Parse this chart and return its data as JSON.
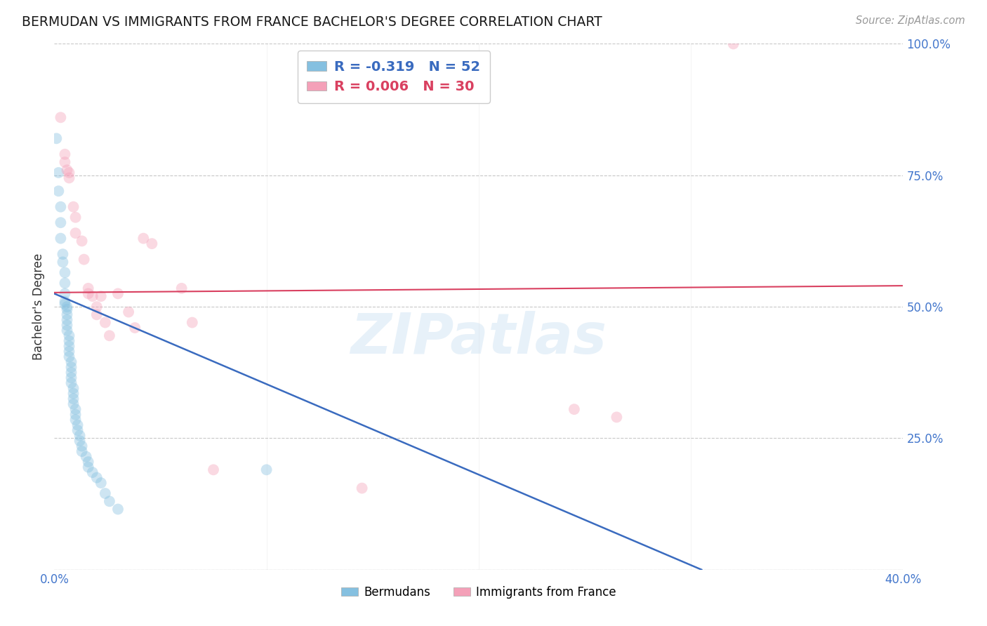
{
  "title": "BERMUDAN VS IMMIGRANTS FROM FRANCE BACHELOR'S DEGREE CORRELATION CHART",
  "source": "Source: ZipAtlas.com",
  "ylabel": "Bachelor's Degree",
  "watermark": "ZIPatlas",
  "xlim": [
    0.0,
    0.4
  ],
  "ylim": [
    0.0,
    1.0
  ],
  "xticks": [
    0.0,
    0.1,
    0.2,
    0.3,
    0.4
  ],
  "xtick_labels": [
    "0.0%",
    "",
    "",
    "",
    "40.0%"
  ],
  "ytick_labels_right": [
    "",
    "25.0%",
    "50.0%",
    "75.0%",
    "100.0%"
  ],
  "yticks": [
    0.0,
    0.25,
    0.5,
    0.75,
    1.0
  ],
  "legend_label1": "Bermudans",
  "legend_label2": "Immigrants from France",
  "blue_scatter": [
    [
      0.001,
      0.82
    ],
    [
      0.002,
      0.755
    ],
    [
      0.002,
      0.72
    ],
    [
      0.003,
      0.69
    ],
    [
      0.003,
      0.66
    ],
    [
      0.003,
      0.63
    ],
    [
      0.004,
      0.6
    ],
    [
      0.004,
      0.585
    ],
    [
      0.005,
      0.565
    ],
    [
      0.005,
      0.545
    ],
    [
      0.005,
      0.525
    ],
    [
      0.005,
      0.51
    ],
    [
      0.005,
      0.505
    ],
    [
      0.006,
      0.5
    ],
    [
      0.006,
      0.495
    ],
    [
      0.006,
      0.485
    ],
    [
      0.006,
      0.475
    ],
    [
      0.006,
      0.465
    ],
    [
      0.006,
      0.455
    ],
    [
      0.007,
      0.445
    ],
    [
      0.007,
      0.435
    ],
    [
      0.007,
      0.425
    ],
    [
      0.007,
      0.415
    ],
    [
      0.007,
      0.405
    ],
    [
      0.008,
      0.395
    ],
    [
      0.008,
      0.385
    ],
    [
      0.008,
      0.375
    ],
    [
      0.008,
      0.365
    ],
    [
      0.008,
      0.355
    ],
    [
      0.009,
      0.345
    ],
    [
      0.009,
      0.335
    ],
    [
      0.009,
      0.325
    ],
    [
      0.009,
      0.315
    ],
    [
      0.01,
      0.305
    ],
    [
      0.01,
      0.295
    ],
    [
      0.01,
      0.285
    ],
    [
      0.011,
      0.275
    ],
    [
      0.011,
      0.265
    ],
    [
      0.012,
      0.255
    ],
    [
      0.012,
      0.245
    ],
    [
      0.013,
      0.235
    ],
    [
      0.013,
      0.225
    ],
    [
      0.015,
      0.215
    ],
    [
      0.016,
      0.205
    ],
    [
      0.016,
      0.195
    ],
    [
      0.018,
      0.185
    ],
    [
      0.02,
      0.175
    ],
    [
      0.022,
      0.165
    ],
    [
      0.024,
      0.145
    ],
    [
      0.026,
      0.13
    ],
    [
      0.03,
      0.115
    ],
    [
      0.1,
      0.19
    ]
  ],
  "pink_scatter": [
    [
      0.003,
      0.86
    ],
    [
      0.005,
      0.79
    ],
    [
      0.005,
      0.775
    ],
    [
      0.006,
      0.76
    ],
    [
      0.007,
      0.755
    ],
    [
      0.007,
      0.745
    ],
    [
      0.009,
      0.69
    ],
    [
      0.01,
      0.67
    ],
    [
      0.01,
      0.64
    ],
    [
      0.013,
      0.625
    ],
    [
      0.014,
      0.59
    ],
    [
      0.016,
      0.535
    ],
    [
      0.016,
      0.525
    ],
    [
      0.018,
      0.52
    ],
    [
      0.02,
      0.5
    ],
    [
      0.02,
      0.485
    ],
    [
      0.022,
      0.52
    ],
    [
      0.024,
      0.47
    ],
    [
      0.026,
      0.445
    ],
    [
      0.03,
      0.525
    ],
    [
      0.035,
      0.49
    ],
    [
      0.038,
      0.46
    ],
    [
      0.042,
      0.63
    ],
    [
      0.046,
      0.62
    ],
    [
      0.06,
      0.535
    ],
    [
      0.065,
      0.47
    ],
    [
      0.075,
      0.19
    ],
    [
      0.145,
      0.155
    ],
    [
      0.245,
      0.305
    ],
    [
      0.265,
      0.29
    ],
    [
      0.32,
      1.0
    ]
  ],
  "blue_line_x": [
    0.0,
    0.305
  ],
  "blue_line_y": [
    0.525,
    0.0
  ],
  "pink_line_x": [
    0.0,
    0.4
  ],
  "pink_line_y": [
    0.527,
    0.54
  ],
  "scatter_size": 130,
  "scatter_alpha": 0.4,
  "blue_color": "#85c0e0",
  "pink_color": "#f4a0b8",
  "blue_line_color": "#3a6bbf",
  "pink_line_color": "#d94060",
  "grid_color": "#c8c8c8",
  "title_color": "#1a1a1a",
  "axis_color": "#4477cc",
  "title_fontsize": 13.5,
  "label_fontsize": 12,
  "tick_fontsize": 12,
  "source_fontsize": 10.5
}
